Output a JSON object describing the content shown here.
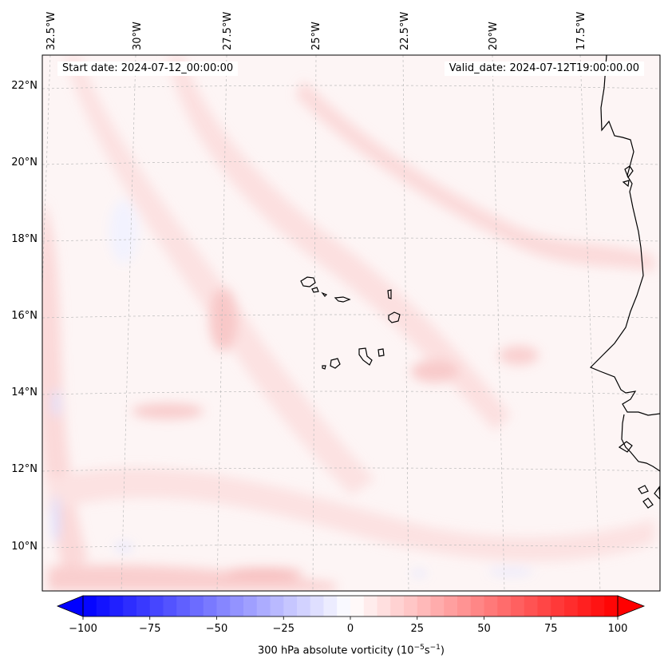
{
  "header": {
    "start_date": "Start date: 2024-07-12_00:00:00",
    "valid_date": "Valid_date: 2024-07-12T19:00:00.00"
  },
  "map": {
    "projection": "conic (Lambert)",
    "lon_range": [
      -33.0,
      -15.5
    ],
    "lat_range": [
      8.8,
      22.8
    ],
    "gridlines": true,
    "lon_labels": [
      "32.5°W",
      "30°W",
      "27.5°W",
      "25°W",
      "22.5°W",
      "20°W",
      "17.5°W"
    ],
    "lat_labels": [
      "22°N",
      "20°N",
      "18°N",
      "16°N",
      "14°N",
      "12°N",
      "10°N"
    ],
    "lon_values": [
      -32.5,
      -30,
      -27.5,
      -25,
      -22.5,
      -20,
      -17.5
    ],
    "lat_values": [
      22,
      20,
      18,
      16,
      14,
      12,
      10
    ],
    "features": [
      "Cabo Verde islands",
      "West African coastline (Mauritania, Senegal, Gambia, Guinea-Bissau)"
    ],
    "field_summary": "Weak positive vorticity (mostly 0 to 15) across the domain with faint red bands; isolated small negative patches near 14N 32.5W and 10N 32.5W"
  },
  "colorbar": {
    "ticks": [
      "−100",
      "−75",
      "−50",
      "−25",
      "0",
      "25",
      "50",
      "75",
      "100"
    ],
    "tick_values": [
      -100,
      -75,
      -50,
      -25,
      0,
      25,
      50,
      75,
      100
    ],
    "label_prefix": "300 hPa absolute vorticity (10",
    "label_exp1": "−5",
    "label_mid": "s",
    "label_exp2": "−1",
    "label_suffix": ")",
    "colormap": "bwr",
    "min_color": "#0000ff",
    "mid_color": "#ffffff",
    "max_color": "#ff0000",
    "extend": "both"
  },
  "colors": {
    "island_outline": "#000000",
    "gridline": "#bbbbbb",
    "background_field": "#fdf4f4"
  }
}
